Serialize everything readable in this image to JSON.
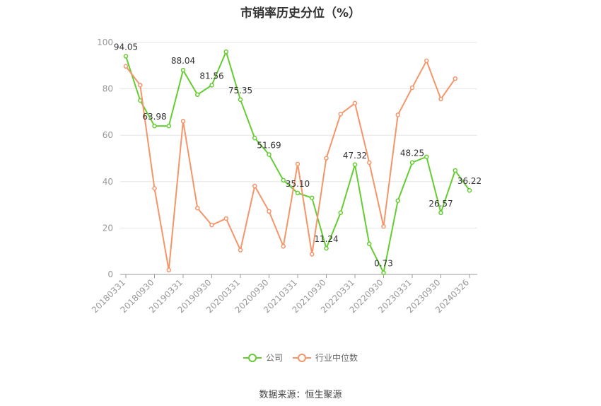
{
  "chart_data": {
    "type": "line",
    "title": "市销率历史分位（%）",
    "x_tick_labels": [
      "20180331",
      "20180930",
      "20190331",
      "20190930",
      "20200331",
      "20200930",
      "20210331",
      "20210930",
      "20220331",
      "20220930",
      "20230331",
      "20230930",
      "20240326"
    ],
    "ylim": [
      0,
      100
    ],
    "y_ticks": [
      0,
      20,
      40,
      60,
      80,
      100
    ],
    "grid": true,
    "legend_position": "bottom",
    "series": [
      {
        "name": "公司",
        "color": "#66cc33",
        "values": [
          94.05,
          75,
          63.98,
          64,
          88.04,
          77.5,
          81.56,
          96,
          75.35,
          58.8,
          51.69,
          40.6,
          35.1,
          33,
          11.24,
          26.6,
          47.32,
          13.2,
          0.73,
          31.8,
          48.25,
          50.7,
          26.57,
          44.8,
          36.22
        ],
        "labels": [
          "94.05",
          "",
          "63.98",
          "",
          "88.04",
          "",
          "81.56",
          "",
          "75.35",
          "",
          "51.69",
          "",
          "35.10",
          "",
          "11.24",
          "",
          "47.32",
          "",
          "0.73",
          "",
          "48.25",
          "",
          "26.57",
          "",
          "36.22"
        ]
      },
      {
        "name": "行业中位数",
        "color": "#f4956a",
        "values": [
          89.7,
          81.6,
          37.1,
          1.9,
          66.1,
          28.6,
          21.3,
          24.1,
          10.5,
          38.1,
          27.2,
          12.1,
          47.6,
          8.7,
          50.1,
          69.1,
          73.8,
          48.2,
          20.7,
          68.8,
          80.5,
          92.1,
          75.6,
          84.4
        ]
      }
    ]
  },
  "source_text": "数据来源：恒生聚源"
}
